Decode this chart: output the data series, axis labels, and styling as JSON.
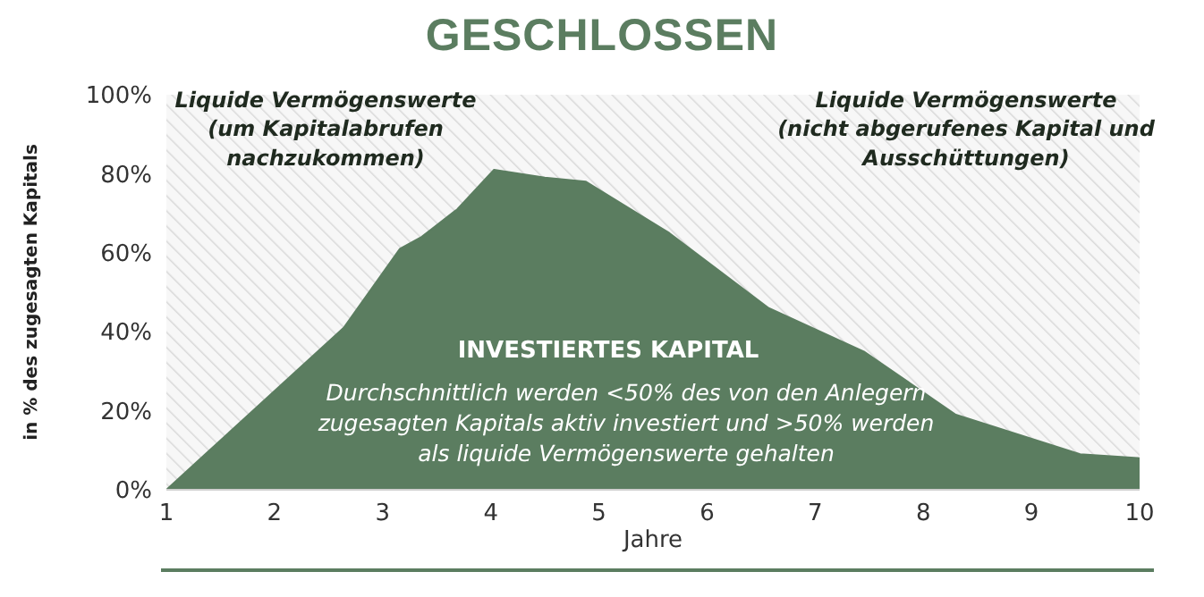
{
  "chart_data": {
    "type": "area",
    "title": "GESCHLOSSEN",
    "xlabel": "Jahre",
    "ylabel": "in % des zugesagten Kapitals",
    "annotations": [
      "Liquide Vermögenswerte\n(um Kapitalabrufen\nnachzukommen)",
      "Liquide Vermögenswerte\n(nicht abgerufenes Kapital und\nAusschüttungen)",
      "INVESTIERTES KAPITAL",
      "Durchschnittlich werden <50% des von den Anlegern\nzugesagten Kapitals aktiv investiert und >50% werden\nals liquide Vermögenswerte gehalten"
    ],
    "x": [
      1,
      2.64,
      3.16,
      3.36,
      3.69,
      4.03,
      4.5,
      4.88,
      5.65,
      6.57,
      7.45,
      8.3,
      9.45,
      10
    ],
    "series": [
      {
        "color": "#5b7d60",
        "values": [
          0,
          41,
          61,
          64,
          71,
          81,
          79,
          78,
          65,
          46,
          35,
          19,
          9,
          8
        ]
      }
    ],
    "xlim": [
      1,
      10
    ],
    "xticks": [
      1,
      2,
      3,
      4,
      5,
      6,
      7,
      8,
      9,
      10
    ],
    "ylim": [
      0,
      100
    ],
    "yticks": [
      {
        "value": 0,
        "label": "0%"
      },
      {
        "value": 20,
        "label": "20%"
      },
      {
        "value": 40,
        "label": "40%"
      },
      {
        "value": 60,
        "label": "60%"
      },
      {
        "value": 80,
        "label": "80%"
      },
      {
        "value": 100,
        "label": "100%"
      }
    ],
    "bands": [
      {
        "axis": "y",
        "from": 0,
        "to": 100,
        "color": "#d9d9d9"
      }
    ],
    "grid": false,
    "legend": false
  }
}
